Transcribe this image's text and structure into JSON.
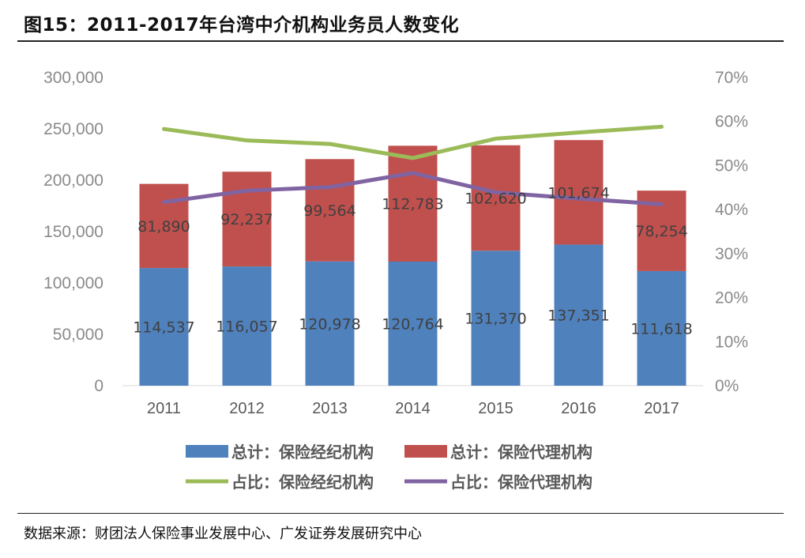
{
  "header": {
    "title": "图15：2011-2017年台湾中介机构业务员人数变化"
  },
  "footer": {
    "source": "数据来源：财团法人保险事业发展中心、广发证券发展研究中心"
  },
  "chart_data": {
    "type": "bar",
    "stacked": true,
    "title": "",
    "categories": [
      "2011",
      "2012",
      "2013",
      "2014",
      "2015",
      "2016",
      "2017"
    ],
    "categories_labels": [
      "2011",
      "2012",
      "2013",
      "2014",
      "2015",
      "2016",
      "2017"
    ],
    "y_left": {
      "ylim": [
        0,
        300000
      ],
      "ticks": [
        0,
        50000,
        100000,
        150000,
        200000,
        250000,
        300000
      ],
      "tick_labels": [
        "0",
        "50,000",
        "100,000",
        "150,000",
        "200,000",
        "250,000",
        "300,000"
      ]
    },
    "y_right": {
      "ylim": [
        0,
        0.7
      ],
      "ticks": [
        0,
        0.1,
        0.2,
        0.3,
        0.4,
        0.5,
        0.6,
        0.7
      ],
      "tick_labels": [
        "0%",
        "10%",
        "20%",
        "30%",
        "40%",
        "50%",
        "60%",
        "70%"
      ]
    },
    "series": [
      {
        "name": "总计：保险经纪机构",
        "kind": "bar",
        "axis": "left",
        "color": "#4f81bd",
        "values": [
          114537,
          116057,
          120978,
          120764,
          131370,
          137351,
          111618
        ],
        "labels": [
          "114,537",
          "116,057",
          "120,978",
          "120,764",
          "131,370",
          "137,351",
          "111,618"
        ]
      },
      {
        "name": "总计：保险代理机构",
        "kind": "bar",
        "axis": "left",
        "color": "#c0504d",
        "values": [
          81890,
          92237,
          99564,
          112783,
          102620,
          101674,
          78254
        ],
        "labels": [
          "81,890",
          "92,237",
          "99,564",
          "112,783",
          "102,620",
          "101,674",
          "78,254"
        ]
      },
      {
        "name": "占比：保险经纪机构",
        "kind": "line",
        "axis": "right",
        "color": "#9bbb59",
        "values": [
          0.583,
          0.557,
          0.549,
          0.517,
          0.561,
          0.575,
          0.588
        ]
      },
      {
        "name": "占比：保险代理机构",
        "kind": "line",
        "axis": "right",
        "color": "#8064a2",
        "values": [
          0.417,
          0.443,
          0.451,
          0.483,
          0.439,
          0.425,
          0.412
        ]
      }
    ],
    "legend_position": "bottom",
    "grid": false
  }
}
